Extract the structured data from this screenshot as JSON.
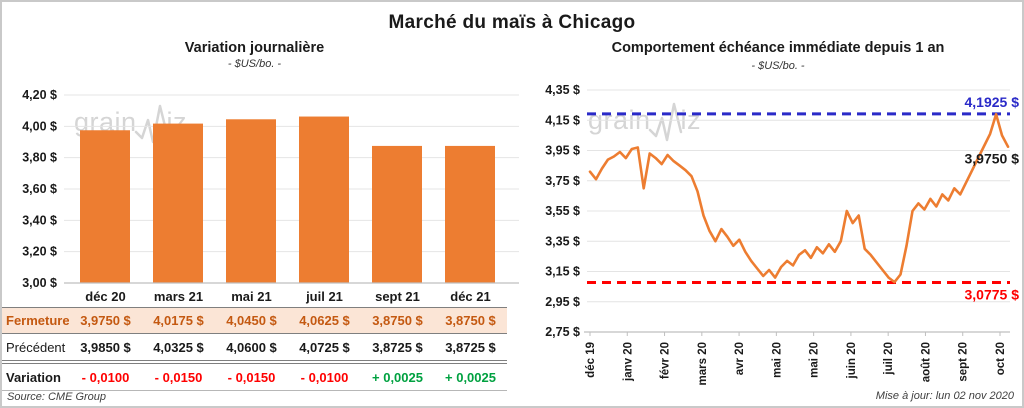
{
  "header": {
    "title": "Marché du maïs à Chicago"
  },
  "watermark": {
    "prefix": "grain",
    "suffix": "iz"
  },
  "footer": {
    "source": "Source: CME Group",
    "updated": "Mise à jour: lun 02 nov 2020"
  },
  "chart_data": [
    {
      "id": "daily-variation",
      "type": "bar",
      "title": "Variation journalière",
      "subtitle": "- $US/bo. -",
      "categories": [
        "déc 20",
        "mars 21",
        "mai 21",
        "juil 21",
        "sept 21",
        "déc 21"
      ],
      "values": [
        3.975,
        4.0175,
        4.045,
        4.0625,
        3.875,
        3.875
      ],
      "ylim": [
        3.0,
        4.2
      ],
      "ytick_step": 0.2,
      "ytick_labels": [
        "4,20 $",
        "4,00 $",
        "3,80 $",
        "3,60 $",
        "3,40 $",
        "3,20 $",
        "3,00 $"
      ],
      "bar_color": "#ED7D31",
      "grid": true,
      "legend": "none"
    },
    {
      "id": "front-month-one-year",
      "type": "line",
      "title": "Comportement échéance immédiate depuis 1 an",
      "subtitle": "- $US/bo. -",
      "x_tick_labels": [
        "déc 19",
        "janv 20",
        "févr 20",
        "mars 20",
        "avr 20",
        "mai 20",
        "mai 20",
        "juin 20",
        "juil 20",
        "août 20",
        "sept 20",
        "oct 20"
      ],
      "values": [
        3.81,
        3.76,
        3.83,
        3.89,
        3.91,
        3.94,
        3.9,
        3.96,
        3.97,
        3.7,
        3.93,
        3.9,
        3.86,
        3.92,
        3.88,
        3.85,
        3.82,
        3.78,
        3.68,
        3.52,
        3.42,
        3.35,
        3.43,
        3.38,
        3.32,
        3.36,
        3.28,
        3.22,
        3.17,
        3.12,
        3.16,
        3.11,
        3.18,
        3.22,
        3.19,
        3.26,
        3.29,
        3.24,
        3.31,
        3.27,
        3.33,
        3.28,
        3.35,
        3.55,
        3.47,
        3.52,
        3.3,
        3.26,
        3.21,
        3.16,
        3.11,
        3.08,
        3.13,
        3.32,
        3.55,
        3.6,
        3.56,
        3.63,
        3.58,
        3.66,
        3.62,
        3.7,
        3.66,
        3.74,
        3.82,
        3.9,
        3.98,
        4.06,
        4.19,
        4.05,
        3.975
      ],
      "ylim": [
        2.75,
        4.35
      ],
      "ytick_step": 0.2,
      "ytick_labels": [
        "4,35 $",
        "4,15 $",
        "3,95 $",
        "3,75 $",
        "3,55 $",
        "3,35 $",
        "3,15 $",
        "2,95 $",
        "2,75 $"
      ],
      "line_color": "#ED7D31",
      "high_line": {
        "value": 4.1925,
        "label": "4,1925 $",
        "color": "#2A2AC8"
      },
      "low_line": {
        "value": 3.0775,
        "label": "3,0775 $",
        "color": "#FF0000"
      },
      "last_point": {
        "value": 3.975,
        "label": "3,9750 $",
        "color": "#1A1A1A"
      },
      "grid": true,
      "legend": "none"
    },
    {
      "id": "quotes-table",
      "type": "table",
      "columns": [
        "déc 20",
        "mars 21",
        "mai 21",
        "juil 21",
        "sept 21",
        "déc 21"
      ],
      "rows": [
        {
          "label": "Fermeture",
          "style": "close",
          "values": [
            "3,9750 $",
            "4,0175 $",
            "4,0450 $",
            "4,0625 $",
            "3,8750 $",
            "3,8750 $"
          ]
        },
        {
          "label": "Précédent",
          "style": "previous",
          "values": [
            "3,9850 $",
            "4,0325 $",
            "4,0600 $",
            "4,0725 $",
            "3,8725 $",
            "3,8725 $"
          ]
        },
        {
          "label": "Variation",
          "style": "variation",
          "values": [
            "- 0,0100",
            "- 0,0150",
            "- 0,0150",
            "- 0,0100",
            "+ 0,0025",
            "+ 0,0025"
          ],
          "value_colors": [
            "neg",
            "neg",
            "neg",
            "neg",
            "pos",
            "pos"
          ]
        }
      ]
    }
  ]
}
